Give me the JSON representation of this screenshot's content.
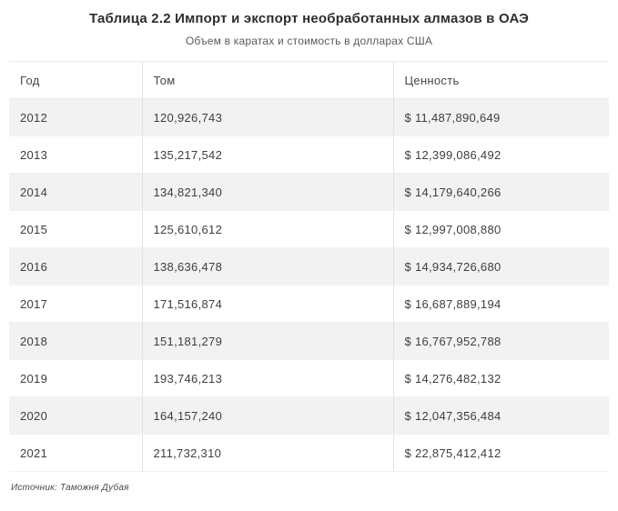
{
  "header": {
    "title": "Таблица 2.2 Импорт и экспорт необработанных алмазов в ОАЭ",
    "subtitle": "Объем в каратах и стоимость в долларах США"
  },
  "footer": {
    "source": "Источник: Таможня Дубая"
  },
  "chart_data": {
    "type": "table",
    "title": "Таблица 2.2 Импорт и экспорт необработанных алмазов в ОАЭ",
    "subtitle": "Объем в каратах и стоимость в долларах США",
    "columns": [
      "Год",
      "Том",
      "Ценность"
    ],
    "rows": [
      [
        "2012",
        "120,926,743",
        "$ 11,487,890,649"
      ],
      [
        "2013",
        "135,217,542",
        "$ 12,399,086,492"
      ],
      [
        "2014",
        "134,821,340",
        "$ 14,179,640,266"
      ],
      [
        "2015",
        "125,610,612",
        "$ 12,997,008,880"
      ],
      [
        "2016",
        "138,636,478",
        "$ 14,934,726,680"
      ],
      [
        "2017",
        "171,516,874",
        "$ 16,687,889,194"
      ],
      [
        "2018",
        "151,181,279",
        "$ 16,767,952,788"
      ],
      [
        "2019",
        "193,746,213",
        "$ 14,276,482,132"
      ],
      [
        "2020",
        "164,157,240",
        "$ 12,047,356,484"
      ],
      [
        "2021",
        "211,732,310",
        "$ 22,875,412,412"
      ]
    ],
    "source": "Источник: Таможня Дубая",
    "layout_hints": {
      "striped_rows": true,
      "stripe_color": "#f2f2f2",
      "column_separator_color": "#e2e2e2"
    }
  }
}
